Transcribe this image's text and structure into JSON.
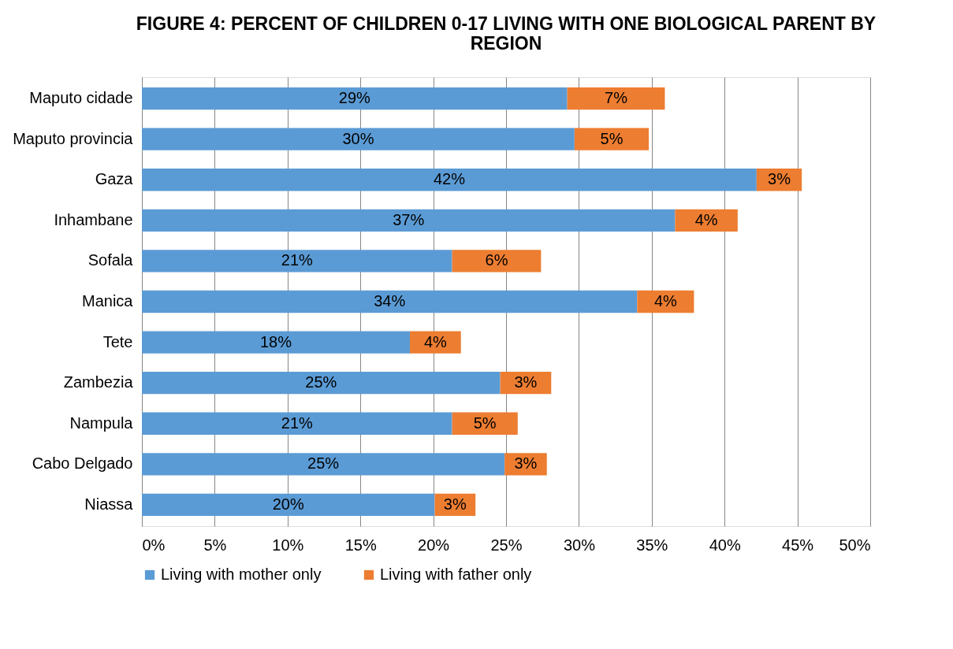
{
  "chart_data": {
    "type": "bar",
    "orientation": "horizontal",
    "stacked": true,
    "title": "FIGURE 4: PERCENT OF CHILDREN 0-17 LIVING WITH ONE BIOLOGICAL PARENT BY REGION",
    "categories": [
      "Maputo cidade",
      "Maputo provincia",
      "Gaza",
      "Inhambane",
      "Sofala",
      "Manica",
      "Tete",
      "Zambezia",
      "Nampula",
      "Cabo Delgado",
      "Niassa"
    ],
    "series": [
      {
        "name": "Living with mother only",
        "color": "#5b9bd5",
        "values": [
          29.2,
          29.7,
          42.2,
          36.6,
          21.3,
          34.0,
          18.4,
          24.6,
          21.3,
          24.9,
          20.1
        ],
        "value_labels": [
          "29%",
          "30%",
          "42%",
          "37%",
          "21%",
          "34%",
          "18%",
          "25%",
          "21%",
          "25%",
          "20%"
        ]
      },
      {
        "name": "Living with father only",
        "color": "#ed7d31",
        "values": [
          6.7,
          5.1,
          3.1,
          4.3,
          6.1,
          3.9,
          3.5,
          3.5,
          4.5,
          2.9,
          2.8
        ],
        "value_labels": [
          "7%",
          "5%",
          "3%",
          "4%",
          "6%",
          "4%",
          "4%",
          "3%",
          "5%",
          "3%",
          "3%"
        ]
      }
    ],
    "xlim": [
      0,
      50
    ],
    "xticks": [
      {
        "value": 0,
        "label": "0%"
      },
      {
        "value": 5,
        "label": "5%"
      },
      {
        "value": 10,
        "label": "10%"
      },
      {
        "value": 15,
        "label": "15%"
      },
      {
        "value": 20,
        "label": "20%"
      },
      {
        "value": 25,
        "label": "25%"
      },
      {
        "value": 30,
        "label": "30%"
      },
      {
        "value": 35,
        "label": "35%"
      },
      {
        "value": 40,
        "label": "40%"
      },
      {
        "value": 45,
        "label": "45%"
      },
      {
        "value": 50,
        "label": "50%"
      }
    ],
    "grid": "x",
    "legend": "bottom"
  }
}
